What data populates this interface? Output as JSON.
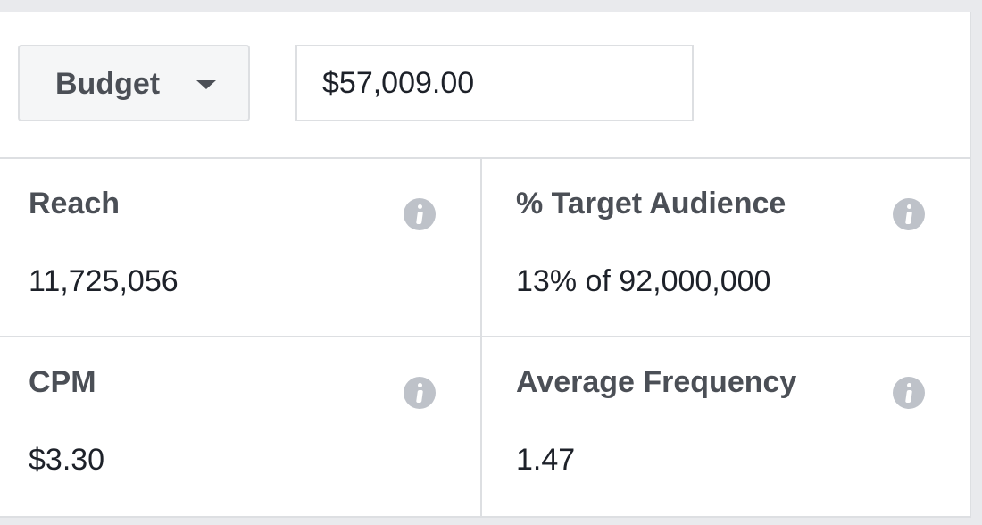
{
  "controls": {
    "budget_dropdown": {
      "label": "Budget",
      "icon": "caret-down-icon"
    },
    "budget_input": {
      "value": "$57,009.00"
    }
  },
  "metrics": [
    {
      "label": "Reach",
      "value": "11,725,056",
      "icon": "info-icon"
    },
    {
      "label": "% Target Audience",
      "value": "13% of 92,000,000",
      "icon": "info-icon"
    },
    {
      "label": "CPM",
      "value": "$3.30",
      "icon": "info-icon"
    },
    {
      "label": "Average Frequency",
      "value": "1.47",
      "icon": "info-icon"
    }
  ],
  "colors": {
    "background": "#e9eaed",
    "panel": "#ffffff",
    "border": "#dddfe2",
    "label_text": "#4b4f56",
    "value_text": "#1d2129",
    "info_icon": "#bec2c9",
    "button_background": "#f5f6f7"
  }
}
